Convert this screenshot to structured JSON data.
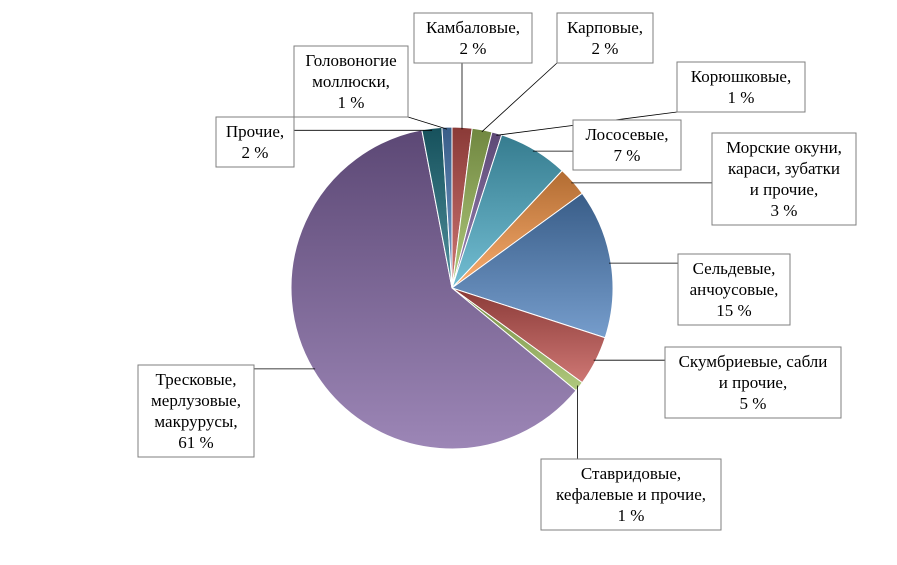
{
  "chart_data": {
    "type": "pie",
    "title": "",
    "slices": [
      {
        "name": "Камбаловые",
        "value": 2,
        "label_lines": [
          "Камбаловые,",
          "2 %"
        ],
        "color": "#c0504d"
      },
      {
        "name": "Карповые",
        "value": 2,
        "label_lines": [
          "Карповые,",
          "2 %"
        ],
        "color": "#9bbb59"
      },
      {
        "name": "Корюшковые",
        "value": 1,
        "label_lines": [
          "Корюшковые,",
          "1 %"
        ],
        "color": "#8064a2"
      },
      {
        "name": "Лососевые",
        "value": 7,
        "label_lines": [
          "Лососевые,",
          "7 %"
        ],
        "color": "#4bacc6"
      },
      {
        "name": "Морские окуни, караси, зубатки и прочие",
        "value": 3,
        "label_lines": [
          "Морские окуни,",
          "караси, зубатки",
          "и прочие,",
          "3 %"
        ],
        "color": "#f79646"
      },
      {
        "name": "Сельдевые, анчоусовые",
        "value": 15,
        "label_lines": [
          "Сельдевые,",
          "анчоусовые,",
          "15 %"
        ],
        "color": "#4f81bd"
      },
      {
        "name": "Скумбриевые, сабли и прочие",
        "value": 5,
        "label_lines": [
          "Скумбриевые, сабли",
          "и прочие,",
          "5 %"
        ],
        "color": "#c0504d"
      },
      {
        "name": "Ставридовые, кефалевые и прочие",
        "value": 1,
        "label_lines": [
          "Ставридовые,",
          "кефалевые и прочие,",
          "1 %"
        ],
        "color": "#9bbb59"
      },
      {
        "name": "Тресковые, мерлузовые, макрурусы",
        "value": 61,
        "label_lines": [
          "Тресковые,",
          "мерлузовые,",
          "макрурусы,",
          "61 %"
        ],
        "color": "#8064a2"
      },
      {
        "name": "Прочие",
        "value": 2,
        "label_lines": [
          "Прочие,",
          "2 %"
        ],
        "color": "#1f7080"
      },
      {
        "name": "Головоногие моллюски",
        "value": 1,
        "label_lines": [
          "Головоногие",
          "моллюски,",
          "1 %"
        ],
        "color": "#4f81bd"
      }
    ],
    "legend": "none",
    "data_labels": "outside-callouts"
  }
}
